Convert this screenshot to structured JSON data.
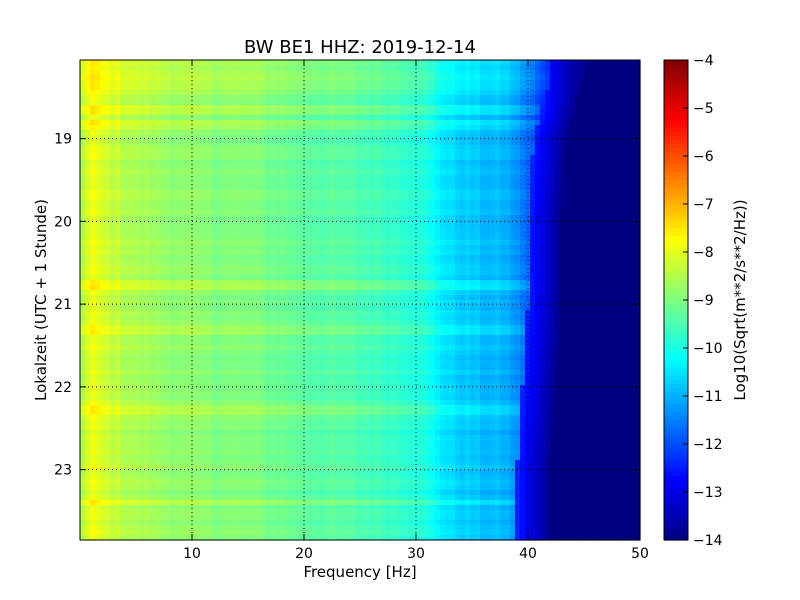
{
  "chart_data": {
    "type": "heatmap",
    "title": "BW BE1 HHZ: 2019-12-14",
    "xlabel": "Frequency [Hz]",
    "ylabel": "Lokalzeit (UTC + 1 Stunde)",
    "xlim": [
      0,
      50
    ],
    "ylim": [
      18.05,
      23.85
    ],
    "y_inverted": true,
    "x_ticks": [
      10,
      20,
      30,
      40,
      50
    ],
    "y_ticks": [
      19,
      20,
      21,
      22,
      23
    ],
    "grid": true,
    "colormap": "jet",
    "colorbar": {
      "label": "Log10(Sqrt(m**2/s**2/Hz))",
      "range": [
        -14,
        -4
      ],
      "ticks": [
        -4,
        -5,
        -6,
        -7,
        -8,
        -9,
        -10,
        -11,
        -12,
        -13,
        -14
      ]
    },
    "spectrum_profile": {
      "frequency_hz": [
        0,
        1,
        2,
        5,
        10,
        15,
        20,
        25,
        30,
        33,
        36,
        38,
        40,
        42,
        44,
        46,
        50
      ],
      "log10_amplitude": [
        -8.6,
        -7.9,
        -8.2,
        -8.6,
        -8.9,
        -9.0,
        -9.3,
        -9.5,
        -9.8,
        -10.6,
        -10.9,
        -11.0,
        -11.7,
        -12.8,
        -13.6,
        -14.0,
        -14.0
      ]
    },
    "bright_bands_time": [
      18.12,
      18.2,
      18.3,
      18.4,
      18.65,
      18.85,
      20.75,
      21.3,
      22.3,
      23.4
    ],
    "cutoff_edge": {
      "time": [
        18.05,
        18.5,
        19.0,
        20.0,
        21.0,
        22.0,
        23.0,
        23.85
      ],
      "frequency_hz": [
        45.5,
        44.5,
        43.5,
        43.0,
        43.0,
        42.5,
        42.0,
        42.0
      ]
    }
  }
}
